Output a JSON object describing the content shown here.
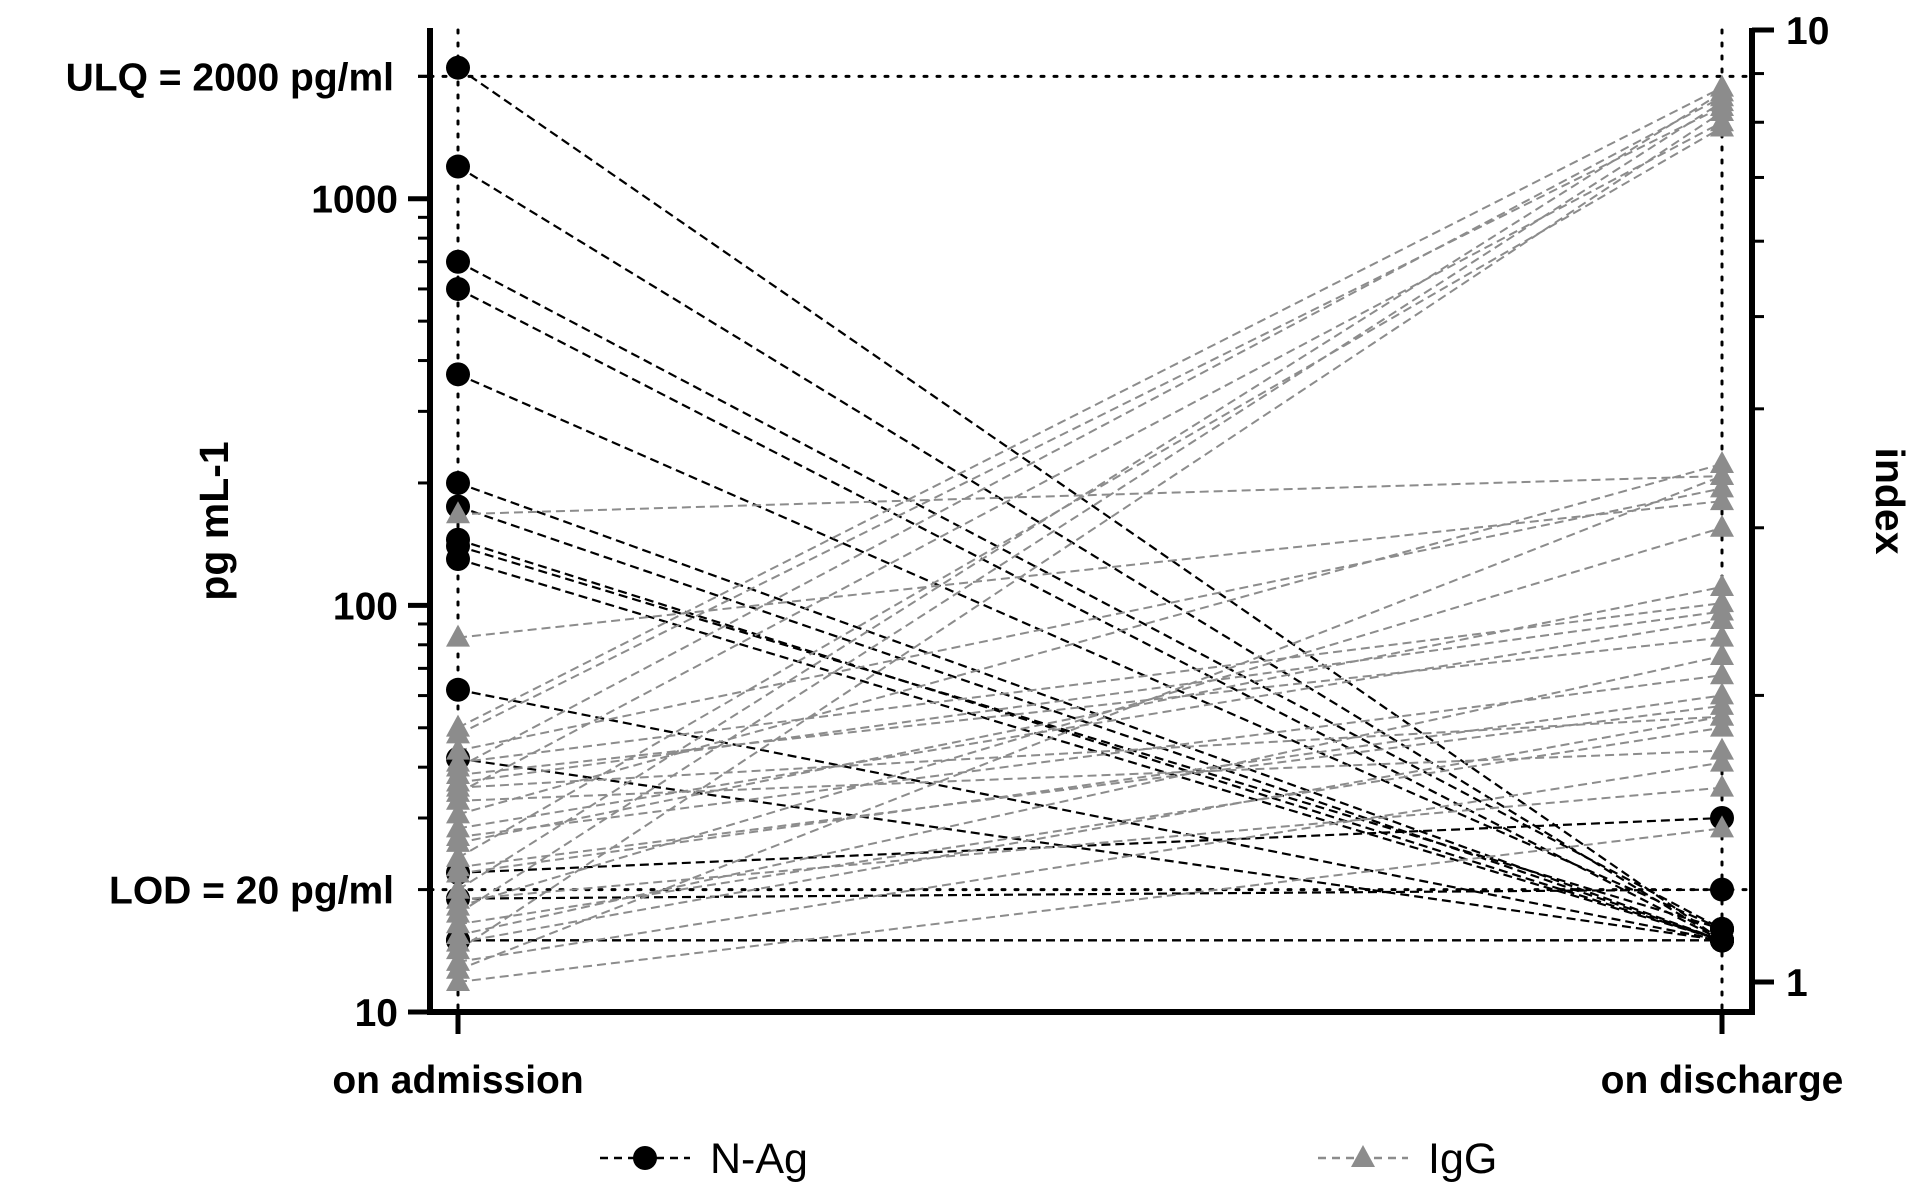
{
  "chart_data": {
    "type": "line",
    "categories": [
      "on admission",
      "on discharge"
    ],
    "ylabel_left": "pg mL-1",
    "ylabel_right": "index",
    "yscale": "log",
    "ylim_left": [
      10,
      2600
    ],
    "ylim_right": [
      0.93,
      10
    ],
    "left_ticks": [
      "10",
      "100",
      "1000"
    ],
    "right_ticks": [
      "1",
      "10"
    ],
    "reference_lines": [
      {
        "label": "ULQ = 2000 pg/ml",
        "value": 2000
      },
      {
        "label": "LOD = 20 pg/ml",
        "value": 20
      }
    ],
    "legend": [
      {
        "label": "N-Ag",
        "marker": "circle",
        "color": "#000000"
      },
      {
        "label": "IgG",
        "marker": "triangle",
        "color": "#8c8c8c"
      }
    ],
    "series": [
      {
        "name": "N-Ag",
        "axis": "left",
        "color": "#000000",
        "pairs": [
          [
            2100,
            15
          ],
          [
            1200,
            15
          ],
          [
            700,
            16
          ],
          [
            600,
            15
          ],
          [
            370,
            16
          ],
          [
            200,
            15
          ],
          [
            175,
            15
          ],
          [
            145,
            15
          ],
          [
            140,
            16
          ],
          [
            130,
            15
          ],
          [
            62,
            15
          ],
          [
            42,
            15
          ],
          [
            22,
            30
          ],
          [
            19,
            20
          ],
          [
            15,
            15
          ],
          [
            15,
            15
          ]
        ]
      },
      {
        "name": "IgG",
        "axis": "right",
        "color": "#8c8c8c",
        "pairs": [
          [
            3.1,
            3.4
          ],
          [
            2.3,
            3.2
          ],
          [
            1.85,
            8.7
          ],
          [
            1.82,
            8.3
          ],
          [
            1.75,
            3.3
          ],
          [
            1.7,
            2.5
          ],
          [
            1.68,
            8.5
          ],
          [
            1.65,
            2.3
          ],
          [
            1.62,
            2.45
          ],
          [
            1.6,
            1.9
          ],
          [
            1.58,
            8.0
          ],
          [
            1.55,
            1.75
          ],
          [
            1.5,
            3.5
          ],
          [
            1.45,
            2.4
          ],
          [
            1.42,
            2.1
          ],
          [
            1.4,
            2.6
          ],
          [
            1.35,
            7.9
          ],
          [
            1.32,
            1.95
          ],
          [
            1.3,
            2.0
          ],
          [
            1.25,
            8.6
          ],
          [
            1.22,
            1.6
          ],
          [
            1.2,
            3.0
          ],
          [
            1.18,
            8.4
          ],
          [
            1.15,
            1.85
          ],
          [
            1.12,
            2.2
          ],
          [
            1.1,
            1.9
          ],
          [
            1.08,
            8.2
          ],
          [
            1.05,
            1.7
          ],
          [
            1.03,
            3.4
          ],
          [
            1.0,
            1.45
          ]
        ]
      }
    ]
  }
}
